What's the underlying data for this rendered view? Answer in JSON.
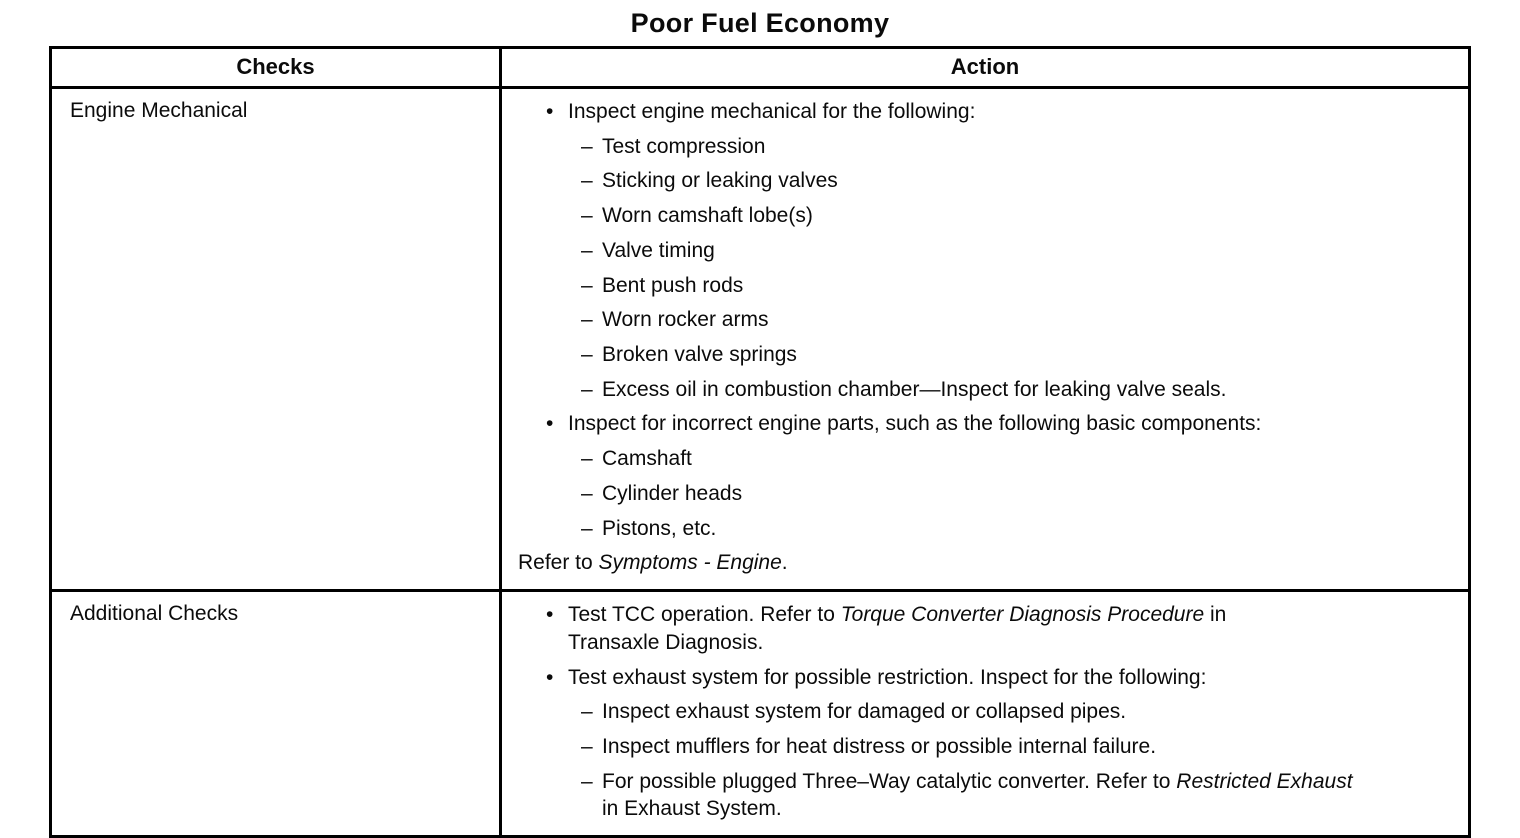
{
  "page": {
    "title": "Poor Fuel Economy"
  },
  "markers": {
    "bullet": "•",
    "dash": "–"
  },
  "table": {
    "headers": [
      "Checks",
      "Action"
    ],
    "rows": [
      {
        "check": "Engine Mechanical",
        "actions": [
          {
            "kind": "bullet",
            "parts": [
              {
                "t": "Inspect engine mechanical for the following:"
              }
            ]
          },
          {
            "kind": "dash",
            "parts": [
              {
                "t": "Test compression"
              }
            ]
          },
          {
            "kind": "dash",
            "parts": [
              {
                "t": "Sticking or leaking valves"
              }
            ]
          },
          {
            "kind": "dash",
            "parts": [
              {
                "t": "Worn camshaft lobe(s)"
              }
            ]
          },
          {
            "kind": "dash",
            "parts": [
              {
                "t": "Valve timing"
              }
            ]
          },
          {
            "kind": "dash",
            "parts": [
              {
                "t": "Bent push rods"
              }
            ]
          },
          {
            "kind": "dash",
            "parts": [
              {
                "t": "Worn rocker arms"
              }
            ]
          },
          {
            "kind": "dash",
            "parts": [
              {
                "t": "Broken valve springs"
              }
            ]
          },
          {
            "kind": "dash",
            "parts": [
              {
                "t": "Excess oil in combustion chamber—Inspect for leaking valve seals."
              }
            ]
          },
          {
            "kind": "bullet",
            "parts": [
              {
                "t": "Inspect for incorrect engine parts, such as the following basic components:"
              }
            ]
          },
          {
            "kind": "dash",
            "parts": [
              {
                "t": "Camshaft"
              }
            ]
          },
          {
            "kind": "dash",
            "parts": [
              {
                "t": "Cylinder heads"
              }
            ]
          },
          {
            "kind": "dash",
            "parts": [
              {
                "t": "Pistons, etc."
              }
            ]
          },
          {
            "kind": "plain",
            "parts": [
              {
                "t": "Refer to "
              },
              {
                "t": "Symptoms - Engine",
                "i": true
              },
              {
                "t": "."
              }
            ]
          }
        ]
      },
      {
        "check": "Additional Checks",
        "actions": [
          {
            "kind": "bullet",
            "parts": [
              {
                "t": "Test TCC operation. Refer to "
              },
              {
                "t": "Torque Converter Diagnosis Procedure",
                "i": true
              },
              {
                "t": " in Transaxle Diagnosis."
              }
            ]
          },
          {
            "kind": "bullet",
            "parts": [
              {
                "t": "Test exhaust system for possible restriction. Inspect for the following:"
              }
            ]
          },
          {
            "kind": "dash",
            "parts": [
              {
                "t": "Inspect exhaust system for damaged or collapsed pipes."
              }
            ]
          },
          {
            "kind": "dash",
            "parts": [
              {
                "t": "Inspect mufflers for heat distress or possible internal failure."
              }
            ]
          },
          {
            "kind": "dash",
            "parts": [
              {
                "t": "For possible plugged Three–Way catalytic converter. Refer to "
              },
              {
                "t": "Restricted Exhaust",
                "i": true
              },
              {
                "t": " in Exhaust System."
              }
            ]
          }
        ]
      }
    ]
  }
}
